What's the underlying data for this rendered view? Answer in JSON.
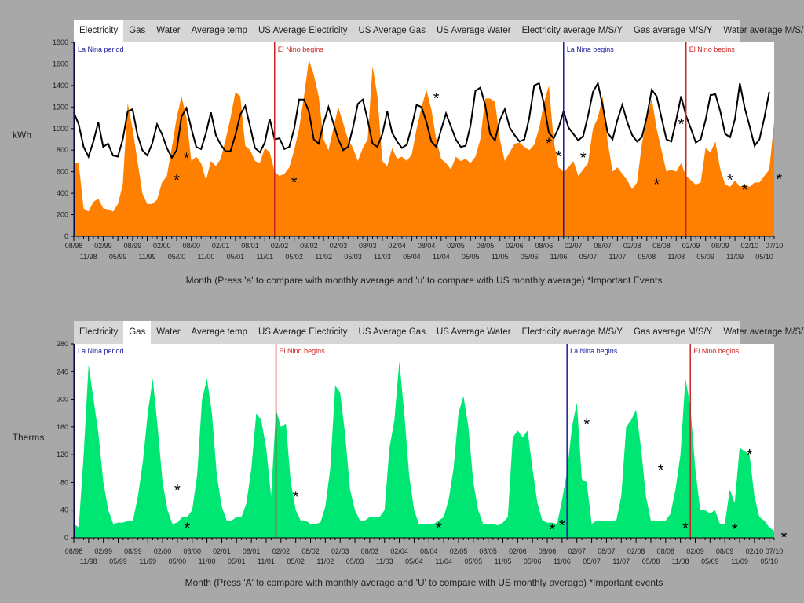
{
  "tabs": [
    "Electricity",
    "Gas",
    "Water",
    "Average temp",
    "US Average Electricity",
    "US Average Gas",
    "US Average Water",
    "Electricity average M/S/Y",
    "Gas average M/S/Y",
    "Water average M/S/Y"
  ],
  "x_top_labels": [
    "08/98",
    "02/99",
    "08/99",
    "02/00",
    "08/00",
    "02/01",
    "08/01",
    "02/02",
    "08/02",
    "02/03",
    "08/03",
    "02/04",
    "08/04",
    "02/05",
    "08/05",
    "02/06",
    "08/06",
    "02/07",
    "08/07",
    "02/08",
    "08/08",
    "02/09",
    "08/09",
    "02/10",
    "07/10"
  ],
  "x_bottom_labels": [
    "11/98",
    "05/99",
    "11/99",
    "05/00",
    "11/00",
    "05/01",
    "11/01",
    "05/02",
    "11/02",
    "05/03",
    "11/03",
    "05/04",
    "11/04",
    "05/05",
    "11/05",
    "05/06",
    "11/06",
    "05/07",
    "11/07",
    "05/08",
    "11/08",
    "05/09",
    "11/09",
    "05/10"
  ],
  "events": [
    {
      "label": "La Nina period",
      "index": 0,
      "color": "#1a1a9c"
    },
    {
      "label": "El Nino begins",
      "index": 41,
      "color": "#cc2222"
    },
    {
      "label": "La Nina begins",
      "index": 100,
      "color": "#1a1a9c"
    },
    {
      "label": "El Nino begins",
      "index": 125,
      "color": "#cc2222"
    }
  ],
  "chart_data": [
    {
      "type": "area",
      "active_tab": "Electricity",
      "ylabel": "kWh",
      "ylim": [
        0,
        1800
      ],
      "yticks": [
        0,
        200,
        400,
        600,
        800,
        1000,
        1200,
        1400,
        1600,
        1800
      ],
      "caption": "Month  (Press 'a' to compare with monthly average and 'u' to compare with US monthly average)  *Important Events",
      "fill_color": "#ff8000",
      "line_color": "#000000",
      "series": [
        {
          "values": [
            680,
            680,
            260,
            230,
            320,
            350,
            260,
            250,
            230,
            300,
            480,
            1240,
            1000,
            700,
            400,
            300,
            300,
            340,
            500,
            560,
            820,
            1100,
            1300,
            1100,
            700,
            740,
            680,
            520,
            700,
            650,
            720,
            900,
            1100,
            1340,
            1300,
            840,
            800,
            700,
            680,
            820,
            780,
            600,
            560,
            580,
            640,
            800,
            1000,
            1300,
            1640,
            1500,
            1300,
            900,
            800,
            1000,
            1200,
            1050,
            900,
            820,
            700,
            820,
            900,
            1580,
            1300,
            700,
            650,
            820,
            720,
            740,
            700,
            760,
            1000,
            1200,
            1360,
            1180,
            900,
            720,
            680,
            620,
            740,
            700,
            720,
            680,
            740,
            900,
            1280,
            1280,
            1250,
            900,
            700,
            780,
            860,
            870,
            830,
            800,
            850,
            1000,
            1240,
            1400,
            880,
            640,
            600,
            640,
            700,
            560,
            620,
            680,
            1000,
            1100,
            1300,
            880,
            600,
            640,
            580,
            520,
            440,
            500,
            860,
            1100,
            1280,
            1000,
            800,
            600,
            620,
            600,
            680,
            560,
            520,
            480,
            500,
            820,
            780,
            880,
            620,
            480,
            460,
            520,
            460,
            480,
            460,
            500,
            500,
            560,
            620,
            1060
          ],
          "name": ""
        },
        {
          "values": [
            1150,
            1040,
            830,
            740,
            880,
            1060,
            830,
            860,
            750,
            740,
            900,
            1160,
            1180,
            940,
            800,
            750,
            860,
            1040,
            950,
            820,
            730,
            800,
            1110,
            1190,
            1000,
            830,
            810,
            960,
            1150,
            940,
            850,
            790,
            790,
            940,
            1130,
            1210,
            1020,
            820,
            780,
            870,
            1090,
            900,
            910,
            810,
            830,
            1000,
            1270,
            1270,
            1160,
            900,
            860,
            1050,
            1200,
            1050,
            900,
            800,
            830,
            1010,
            1230,
            1270,
            1080,
            860,
            830,
            950,
            1160,
            960,
            880,
            820,
            850,
            1020,
            1220,
            1200,
            1060,
            880,
            830,
            990,
            1140,
            1020,
            900,
            830,
            840,
            1030,
            1350,
            1380,
            1220,
            950,
            890,
            1080,
            1180,
            1010,
            940,
            880,
            900,
            1100,
            1400,
            1420,
            1230,
            960,
            910,
            1010,
            1160,
            1010,
            950,
            890,
            930,
            1120,
            1340,
            1420,
            1210,
            960,
            900,
            1080,
            1220,
            1060,
            940,
            880,
            920,
            1110,
            1360,
            1300,
            1100,
            900,
            880,
            1080,
            1300,
            1120,
            1000,
            870,
            900,
            1080,
            1310,
            1320,
            1160,
            950,
            920,
            1090,
            1420,
            1190,
            1020,
            840,
            900,
            1100,
            1340
          ],
          "name": ""
        }
      ],
      "stars": [
        {
          "i": 21,
          "v": 560
        },
        {
          "i": 23,
          "v": 760
        },
        {
          "i": 45,
          "v": 540
        },
        {
          "i": 74,
          "v": 1320
        },
        {
          "i": 97,
          "v": 900
        },
        {
          "i": 99,
          "v": 780
        },
        {
          "i": 104,
          "v": 770
        },
        {
          "i": 119,
          "v": 520
        },
        {
          "i": 124,
          "v": 1080
        },
        {
          "i": 134,
          "v": 560
        },
        {
          "i": 137,
          "v": 470
        },
        {
          "i": 144,
          "v": 570
        }
      ]
    },
    {
      "type": "area",
      "active_tab": "Gas",
      "ylabel": "Therms",
      "ylim": [
        0,
        280
      ],
      "yticks": [
        0,
        40,
        80,
        120,
        160,
        200,
        240,
        280
      ],
      "caption": "Month  (Press 'A' to compare with monthly average and 'U' to compare with US monthly average)  *Important events",
      "fill_color": "#00e673",
      "series": [
        {
          "values": [
            20,
            15,
            120,
            250,
            200,
            150,
            80,
            40,
            20,
            22,
            22,
            25,
            25,
            60,
            110,
            180,
            230,
            160,
            80,
            40,
            20,
            22,
            30,
            30,
            40,
            90,
            200,
            230,
            180,
            90,
            45,
            25,
            25,
            30,
            30,
            50,
            100,
            180,
            170,
            130,
            60,
            185,
            160,
            165,
            80,
            40,
            25,
            25,
            20,
            20,
            22,
            45,
            100,
            220,
            210,
            150,
            70,
            40,
            25,
            25,
            30,
            30,
            30,
            40,
            130,
            170,
            255,
            180,
            90,
            40,
            20,
            20,
            20,
            20,
            25,
            30,
            55,
            100,
            180,
            205,
            160,
            80,
            40,
            20,
            20,
            20,
            18,
            22,
            30,
            145,
            155,
            145,
            155,
            100,
            50,
            25,
            22,
            22,
            20,
            55,
            95,
            160,
            195,
            85,
            80,
            20,
            25,
            25,
            25,
            25,
            25,
            60,
            160,
            170,
            185,
            130,
            60,
            25,
            25,
            25,
            25,
            35,
            70,
            120,
            230,
            190,
            100,
            40,
            40,
            35,
            40,
            20,
            20,
            70,
            50,
            130,
            125,
            120,
            60,
            30,
            25,
            15,
            10
          ],
          "name": ""
        }
      ],
      "stars": [
        {
          "i": 21,
          "v": 75
        },
        {
          "i": 23,
          "v": 20
        },
        {
          "i": 45,
          "v": 65
        },
        {
          "i": 74,
          "v": 20
        },
        {
          "i": 97,
          "v": 18
        },
        {
          "i": 99,
          "v": 24
        },
        {
          "i": 104,
          "v": 170
        },
        {
          "i": 119,
          "v": 104
        },
        {
          "i": 124,
          "v": 20
        },
        {
          "i": 134,
          "v": 18
        },
        {
          "i": 137,
          "v": 126
        },
        {
          "i": 144,
          "v": 7
        }
      ]
    }
  ]
}
